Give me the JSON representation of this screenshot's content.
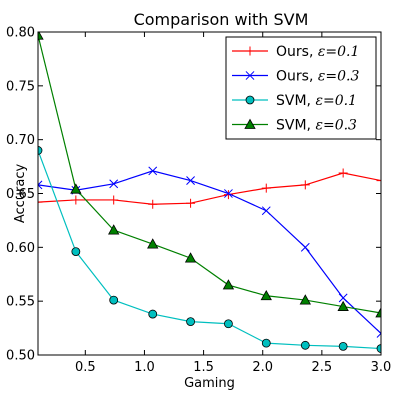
{
  "chart_data": {
    "type": "line",
    "title": "Comparison with SVM",
    "xlabel": "Gaming",
    "ylabel": "Accuracy",
    "xlim": [
      0.1,
      3.0
    ],
    "ylim": [
      0.5,
      0.8
    ],
    "xticks": [
      0.5,
      1.0,
      1.5,
      2.0,
      2.5,
      3.0
    ],
    "xtick_labels": [
      "0.5",
      "1.0",
      "1.5",
      "2.0",
      "2.5",
      "3.0"
    ],
    "yticks": [
      0.5,
      0.55,
      0.6,
      0.65,
      0.7,
      0.75,
      0.8
    ],
    "ytick_labels": [
      "0.50",
      "0.55",
      "0.60",
      "0.65",
      "0.70",
      "0.75",
      "0.80"
    ],
    "grid": false,
    "legend_position": "top-right",
    "x": [
      0.1,
      0.42,
      0.74,
      1.07,
      1.39,
      1.71,
      2.03,
      2.36,
      2.68,
      3.0
    ],
    "series": [
      {
        "name": "Ours, ε=0.1",
        "name_main": "Ours, ",
        "name_math": "ε=0.1",
        "color": "#ff0000",
        "marker": "plus",
        "values": [
          0.642,
          0.644,
          0.644,
          0.64,
          0.641,
          0.649,
          0.655,
          0.658,
          0.669,
          0.662
        ]
      },
      {
        "name": "Ours, ε=0.3",
        "name_main": "Ours, ",
        "name_math": "ε=0.3",
        "color": "#0000ff",
        "marker": "x",
        "values": [
          0.658,
          0.653,
          0.659,
          0.671,
          0.662,
          0.65,
          0.634,
          0.6,
          0.553,
          0.52
        ]
      },
      {
        "name": "SVM, ε=0.1",
        "name_main": "SVM, ",
        "name_math": "ε=0.1",
        "color": "#00bfbf",
        "marker": "circle",
        "values": [
          0.69,
          0.596,
          0.551,
          0.538,
          0.531,
          0.529,
          0.511,
          0.509,
          0.508,
          0.506
        ]
      },
      {
        "name": "SVM, ε=0.3",
        "name_main": "SVM, ",
        "name_math": "ε=0.3",
        "color": "#008000",
        "marker": "triangle",
        "values": [
          0.797,
          0.654,
          0.616,
          0.603,
          0.59,
          0.565,
          0.555,
          0.551,
          0.545,
          0.539
        ]
      }
    ]
  }
}
